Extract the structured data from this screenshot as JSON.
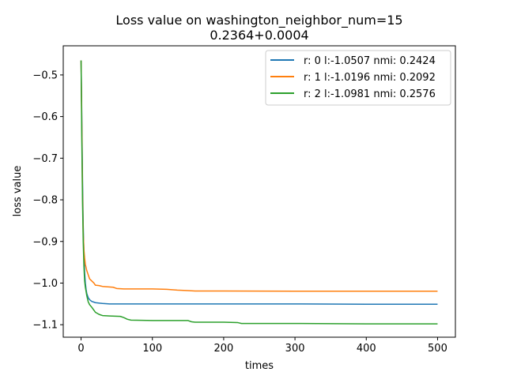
{
  "chart_data": {
    "type": "line",
    "title": "Loss value on washington_neighbor_num=15",
    "subtitle": "0.2364+0.0004",
    "xlabel": "times",
    "ylabel": "loss value",
    "xlim": [
      -25,
      525
    ],
    "ylim": [
      -1.13,
      -0.43
    ],
    "xticks": [
      0,
      100,
      200,
      300,
      400,
      500
    ],
    "xtick_labels": [
      "0",
      "100",
      "200",
      "300",
      "400",
      "500"
    ],
    "yticks": [
      -0.5,
      -0.6,
      -0.7,
      -0.8,
      -0.9,
      -1.0,
      -1.1
    ],
    "ytick_labels": [
      "−0.5",
      "−0.6",
      "−0.7",
      "−0.8",
      "−0.9",
      "−1.0",
      "−1.1"
    ],
    "grid": false,
    "legend_position": "upper right",
    "series": [
      {
        "name": "r: 0 l:-1.0507 nmi: 0.2424",
        "color": "#1f77b4",
        "x": [
          0,
          1,
          2,
          3,
          4,
          5,
          6,
          7,
          8,
          10,
          12,
          15,
          20,
          30,
          40,
          60,
          100,
          200,
          300,
          400,
          500
        ],
        "y": [
          -0.465,
          -0.6,
          -0.75,
          -0.86,
          -0.93,
          -0.975,
          -1.0,
          -1.015,
          -1.025,
          -1.035,
          -1.04,
          -1.044,
          -1.047,
          -1.049,
          -1.05,
          -1.05,
          -1.05,
          -1.05,
          -1.05,
          -1.0507,
          -1.0507
        ]
      },
      {
        "name": "r: 1 l:-1.0196 nmi: 0.2092",
        "color": "#ff7f0e",
        "x": [
          0,
          1,
          2,
          3,
          4,
          5,
          6,
          8,
          10,
          12,
          15,
          18,
          20,
          25,
          30,
          45,
          50,
          60,
          100,
          120,
          135,
          150,
          160,
          200,
          300,
          400,
          500
        ],
        "y": [
          -0.465,
          -0.62,
          -0.78,
          -0.88,
          -0.92,
          -0.94,
          -0.955,
          -0.97,
          -0.98,
          -0.99,
          -0.995,
          -1.0,
          -1.005,
          -1.006,
          -1.008,
          -1.01,
          -1.013,
          -1.014,
          -1.014,
          -1.015,
          -1.017,
          -1.018,
          -1.019,
          -1.019,
          -1.0196,
          -1.0196,
          -1.0196
        ]
      },
      {
        "name": "r: 2 l:-1.0981 nmi: 0.2576",
        "color": "#2ca02c",
        "x": [
          0,
          1,
          2,
          3,
          4,
          5,
          6,
          8,
          10,
          12,
          15,
          20,
          25,
          30,
          40,
          55,
          60,
          65,
          70,
          100,
          150,
          155,
          160,
          200,
          220,
          225,
          300,
          400,
          500
        ],
        "y": [
          -0.465,
          -0.65,
          -0.8,
          -0.9,
          -0.96,
          -0.995,
          -1.01,
          -1.03,
          -1.045,
          -1.052,
          -1.058,
          -1.07,
          -1.075,
          -1.078,
          -1.079,
          -1.08,
          -1.083,
          -1.087,
          -1.089,
          -1.09,
          -1.09,
          -1.093,
          -1.094,
          -1.094,
          -1.095,
          -1.097,
          -1.097,
          -1.0981,
          -1.0981
        ]
      }
    ]
  }
}
